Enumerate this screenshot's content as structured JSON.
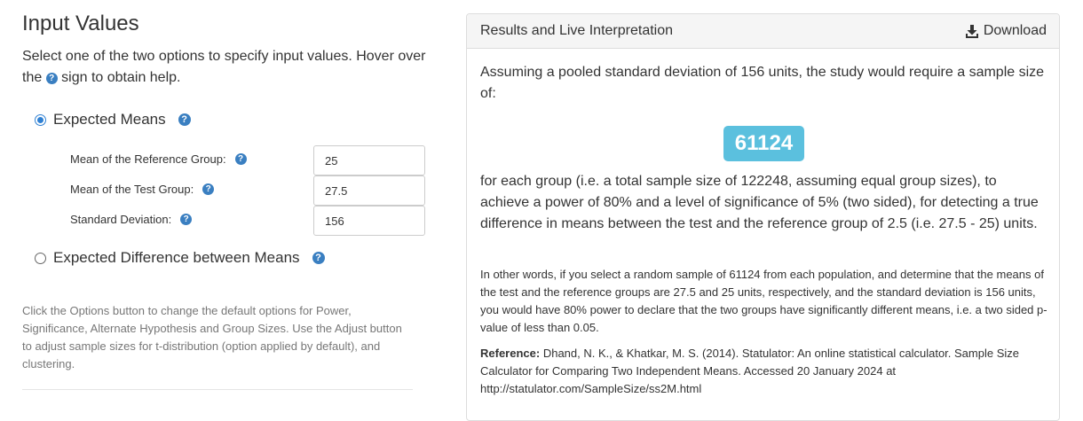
{
  "input": {
    "heading": "Input Values",
    "intro_before": "Select one of the two options to specify input values. Hover over the",
    "intro_after": "sign to obtain help.",
    "option_means": {
      "label": "Expected Means",
      "selected": true
    },
    "fields": [
      {
        "label": "Mean of the Reference Group:",
        "value": "25"
      },
      {
        "label": "Mean of the Test Group:",
        "value": "27.5"
      },
      {
        "label": "Standard Deviation:",
        "value": "156"
      }
    ],
    "option_difference": {
      "label": "Expected Difference between Means",
      "selected": false
    },
    "help_text": "Click the Options button to change the default options for Power, Significance, Alternate Hypothesis and Group Sizes. Use the Adjust button to adjust sample sizes for t-distribution (option applied by default), and clustering."
  },
  "results": {
    "title": "Results and Live Interpretation",
    "download_label": "Download",
    "intro": "Assuming a pooled standard deviation of 156 units, the study would require a sample size of:",
    "sample_size": "61124",
    "detail": "for each group (i.e. a total sample size of 122248, assuming equal group sizes), to achieve a power of 80% and a level of significance of 5% (two sided), for detecting a true difference in means between the test and the reference group of 2.5 (i.e. 27.5 - 25) units.",
    "other_words": "In other words, if you select a random sample of 61124 from each population, and determine that the means of the test and the reference groups are 27.5 and 25 units, respectively, and the standard deviation is 156 units, you would have 80% power to declare that the two groups have significantly different means, i.e. a two sided p-value of less than 0.05.",
    "reference_label": "Reference:",
    "reference_text": "Dhand, N. K., & Khatkar, M. S. (2014). Statulator: An online statistical calculator. Sample Size Calculator for Comparing Two Independent Means. Accessed 20 January 2024 at http://statulator.com/SampleSize/ss2M.html"
  },
  "icons": {
    "help": "question-circle-icon",
    "download": "download-icon"
  },
  "colors": {
    "accent": "#2f80d3",
    "help_icon": "#3a7fc1",
    "badge": "#5bc0de"
  }
}
